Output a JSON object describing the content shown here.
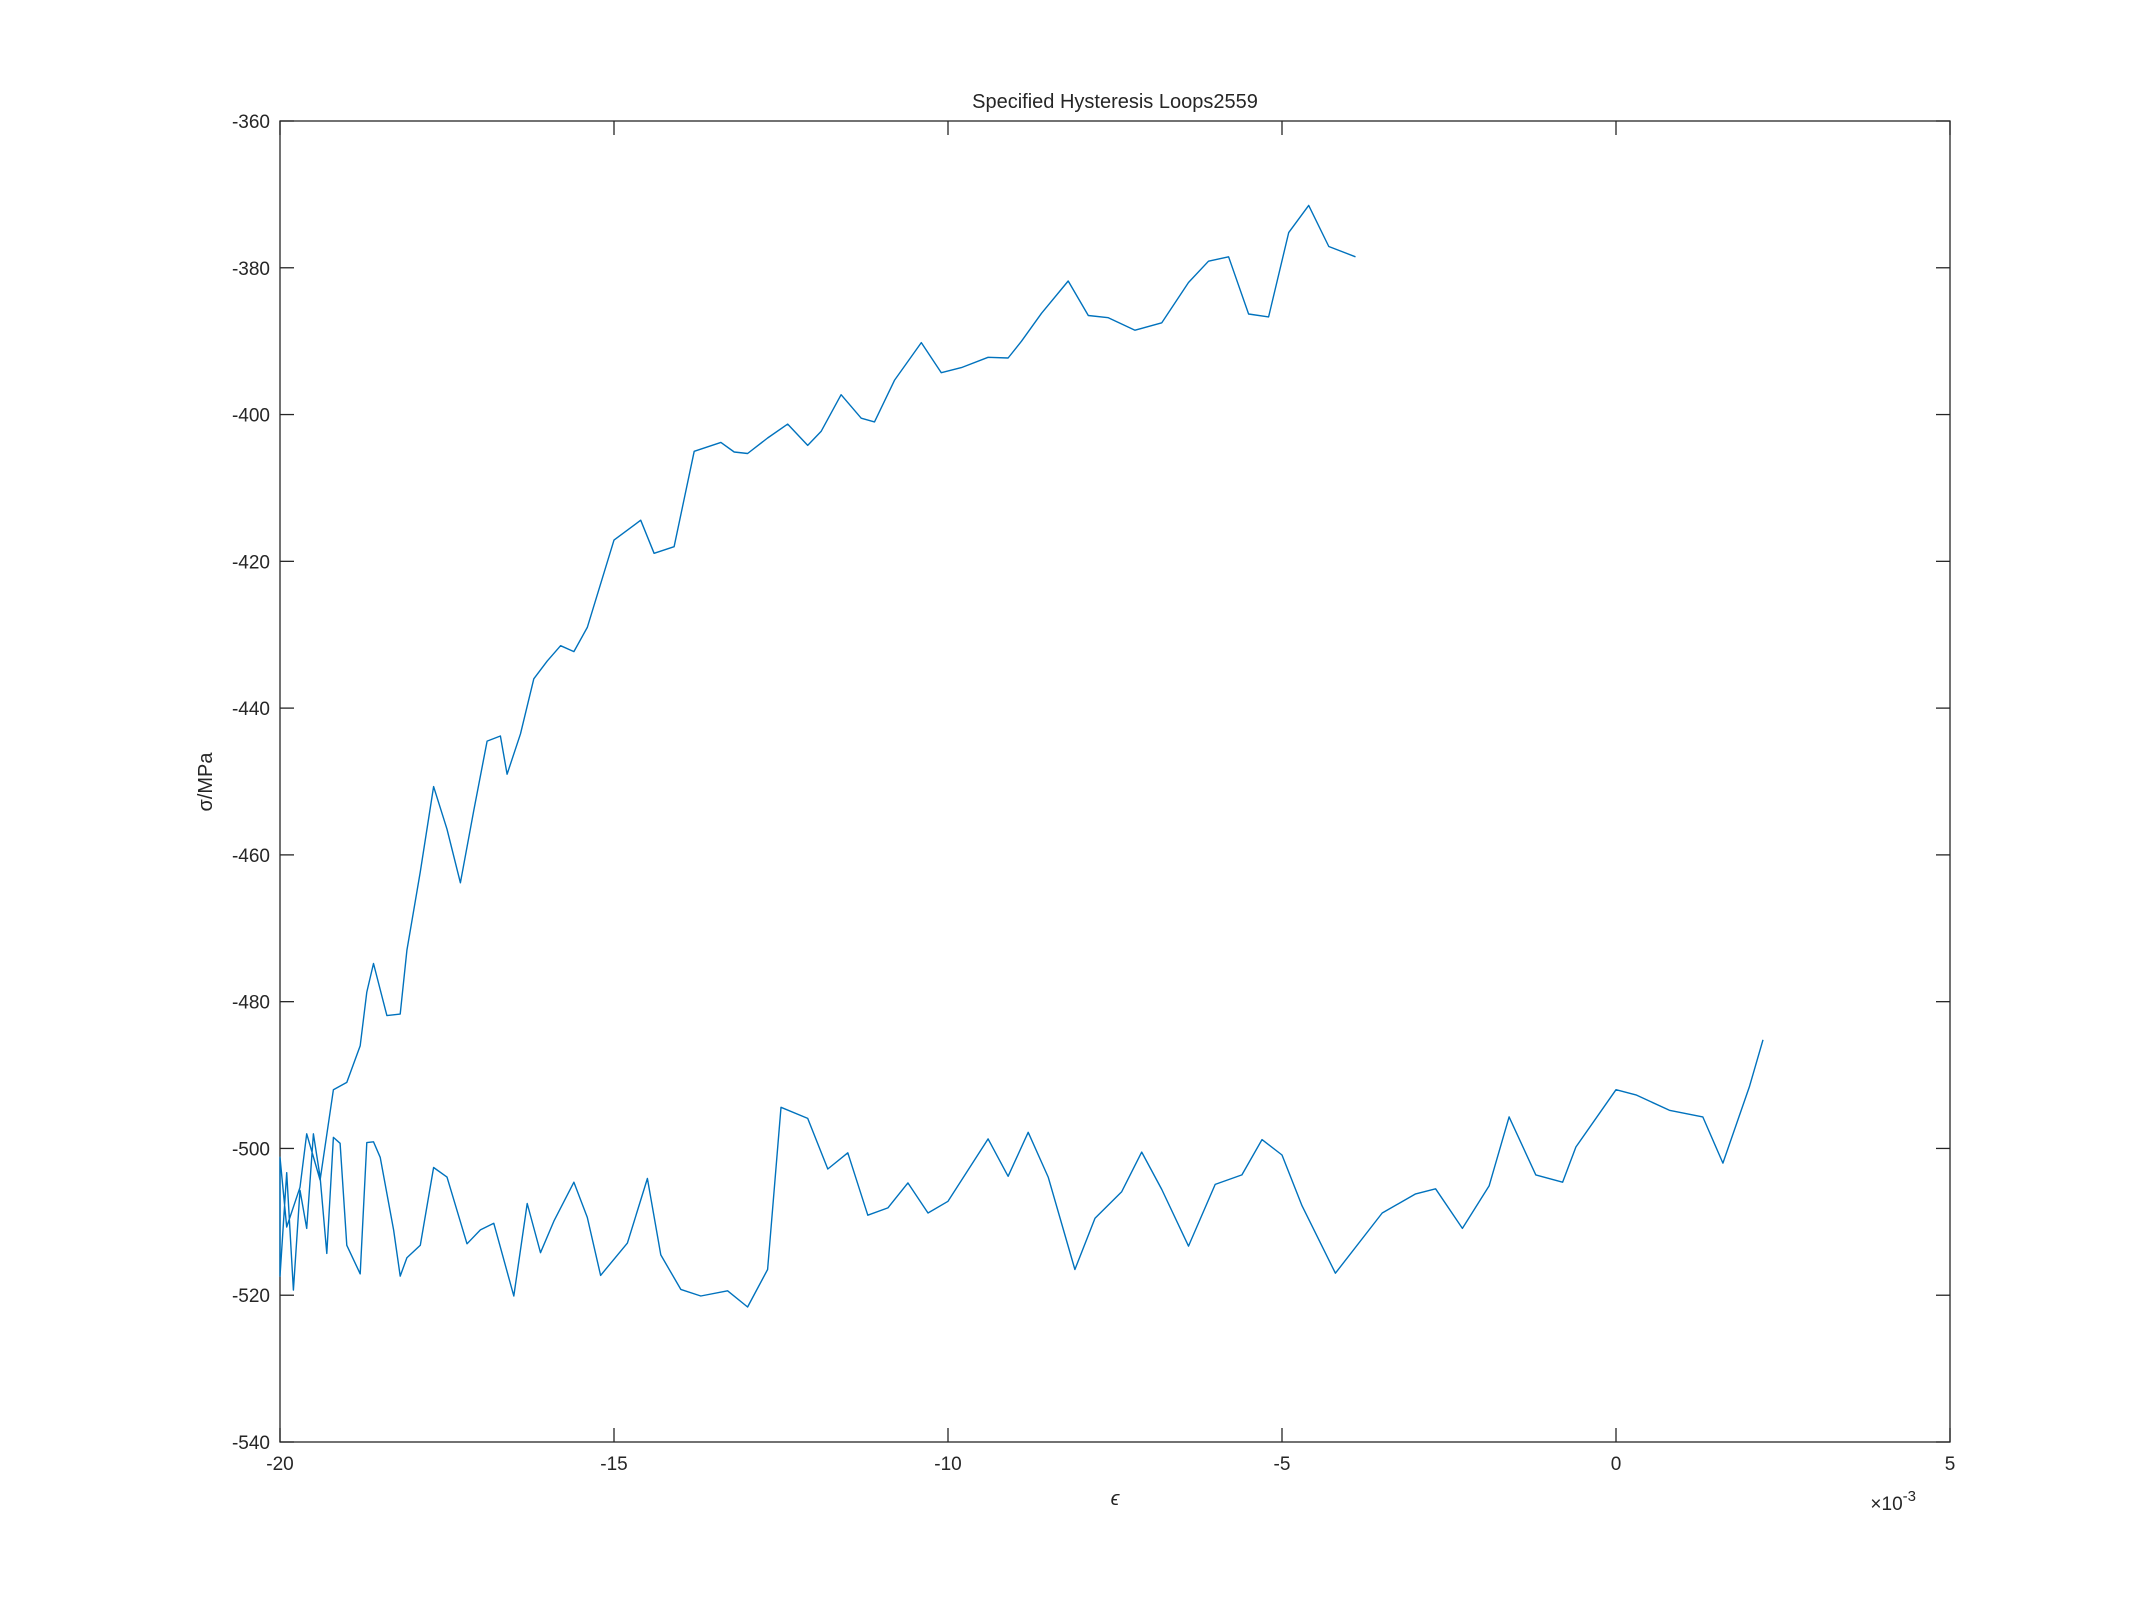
{
  "chart_data": {
    "type": "line",
    "title": "Specified Hysteresis Loops2559",
    "xlabel": "ϵ",
    "ylabel": "σ/MPa",
    "x_exponent_label": "×10",
    "x_exponent_power": "-3",
    "xlim": [
      -0.02,
      0.005
    ],
    "ylim": [
      -540,
      -360
    ],
    "grid": false,
    "legend": "none",
    "colors": {
      "series": "#0072BD",
      "axes": "#262626",
      "background": "#ffffff"
    },
    "x_ticks": [
      {
        "value": -0.02,
        "label": "-20"
      },
      {
        "value": -0.015,
        "label": "-15"
      },
      {
        "value": -0.01,
        "label": "-10"
      },
      {
        "value": -0.005,
        "label": "-5"
      },
      {
        "value": 0,
        "label": "0"
      },
      {
        "value": 0.005,
        "label": "5"
      }
    ],
    "y_ticks": [
      {
        "value": -360,
        "label": "-360"
      },
      {
        "value": -380,
        "label": "-380"
      },
      {
        "value": -400,
        "label": "-400"
      },
      {
        "value": -420,
        "label": "-420"
      },
      {
        "value": -440,
        "label": "-440"
      },
      {
        "value": -460,
        "label": "-460"
      },
      {
        "value": -480,
        "label": "-480"
      },
      {
        "value": -500,
        "label": "-500"
      },
      {
        "value": -520,
        "label": "-520"
      },
      {
        "value": -540,
        "label": "-540"
      }
    ],
    "series": [
      {
        "points": [
          [
            0.0022,
            -485.2
          ],
          [
            0.002,
            -491.5
          ],
          [
            0.0016,
            -502.0
          ],
          [
            0.0013,
            -495.7
          ],
          [
            0.0008,
            -494.8
          ],
          [
            0.0003,
            -492.7
          ],
          [
            0.0,
            -492.0
          ],
          [
            -0.0006,
            -499.8
          ],
          [
            -0.0008,
            -504.6
          ],
          [
            -0.0012,
            -503.6
          ],
          [
            -0.0016,
            -495.7
          ],
          [
            -0.0019,
            -505.1
          ],
          [
            -0.0023,
            -510.9
          ],
          [
            -0.0027,
            -505.5
          ],
          [
            -0.003,
            -506.2
          ],
          [
            -0.0035,
            -508.8
          ],
          [
            -0.0042,
            -517.0
          ],
          [
            -0.0047,
            -507.8
          ],
          [
            -0.005,
            -500.9
          ],
          [
            -0.0053,
            -498.8
          ],
          [
            -0.0056,
            -503.6
          ],
          [
            -0.006,
            -504.9
          ],
          [
            -0.0064,
            -513.3
          ],
          [
            -0.0068,
            -505.6
          ],
          [
            -0.0071,
            -500.5
          ],
          [
            -0.0074,
            -505.9
          ],
          [
            -0.0078,
            -509.5
          ],
          [
            -0.0081,
            -516.5
          ],
          [
            -0.0085,
            -503.9
          ],
          [
            -0.0088,
            -497.8
          ],
          [
            -0.0091,
            -503.8
          ],
          [
            -0.0094,
            -498.7
          ],
          [
            -0.01,
            -507.2
          ],
          [
            -0.0103,
            -508.8
          ],
          [
            -0.0106,
            -504.7
          ],
          [
            -0.0109,
            -508.1
          ],
          [
            -0.0112,
            -509.1
          ],
          [
            -0.0115,
            -500.6
          ],
          [
            -0.0118,
            -502.8
          ],
          [
            -0.0121,
            -495.9
          ],
          [
            -0.0125,
            -494.4
          ],
          [
            -0.0127,
            -516.5
          ],
          [
            -0.013,
            -521.6
          ],
          [
            -0.0133,
            -519.4
          ],
          [
            -0.0137,
            -520.1
          ],
          [
            -0.014,
            -519.2
          ],
          [
            -0.0143,
            -514.5
          ],
          [
            -0.0145,
            -504.1
          ],
          [
            -0.0148,
            -512.9
          ],
          [
            -0.0152,
            -517.3
          ],
          [
            -0.0154,
            -509.4
          ],
          [
            -0.0156,
            -504.6
          ],
          [
            -0.0159,
            -509.9
          ],
          [
            -0.0161,
            -514.2
          ],
          [
            -0.0163,
            -507.5
          ],
          [
            -0.0165,
            -520.1
          ],
          [
            -0.0168,
            -510.2
          ],
          [
            -0.017,
            -511.1
          ],
          [
            -0.0172,
            -513.0
          ],
          [
            -0.0175,
            -503.9
          ],
          [
            -0.0177,
            -502.6
          ],
          [
            -0.0179,
            -513.2
          ],
          [
            -0.0181,
            -514.9
          ],
          [
            -0.0182,
            -517.4
          ],
          [
            -0.0183,
            -511.1
          ],
          [
            -0.0185,
            -501.2
          ],
          [
            -0.0186,
            -499.1
          ],
          [
            -0.0187,
            -499.2
          ],
          [
            -0.0188,
            -517.1
          ],
          [
            -0.019,
            -513.2
          ],
          [
            -0.0191,
            -499.3
          ],
          [
            -0.0192,
            -498.5
          ],
          [
            -0.0193,
            -514.3
          ],
          [
            -0.0194,
            -503.9
          ],
          [
            -0.0195,
            -498.0
          ],
          [
            -0.0196,
            -510.9
          ],
          [
            -0.0197,
            -505.7
          ],
          [
            -0.0198,
            -519.3
          ],
          [
            -0.0199,
            -503.3
          ],
          [
            -0.02,
            -517.4
          ],
          [
            -0.02,
            -501.2
          ],
          [
            -0.0199,
            -510.7
          ],
          [
            -0.0197,
            -505.3
          ],
          [
            -0.0196,
            -498.0
          ],
          [
            -0.0194,
            -504.3
          ],
          [
            -0.0192,
            -492.0
          ],
          [
            -0.019,
            -491.0
          ],
          [
            -0.0188,
            -486.0
          ],
          [
            -0.0187,
            -478.7
          ],
          [
            -0.0186,
            -474.8
          ],
          [
            -0.0184,
            -481.9
          ],
          [
            -0.0182,
            -481.7
          ],
          [
            -0.0181,
            -473.0
          ],
          [
            -0.0179,
            -462.3
          ],
          [
            -0.0177,
            -450.7
          ],
          [
            -0.0175,
            -456.5
          ],
          [
            -0.0173,
            -463.8
          ],
          [
            -0.0171,
            -454.0
          ],
          [
            -0.0169,
            -444.5
          ],
          [
            -0.0167,
            -443.8
          ],
          [
            -0.0166,
            -449.0
          ],
          [
            -0.0164,
            -443.5
          ],
          [
            -0.0162,
            -436.0
          ],
          [
            -0.016,
            -433.6
          ],
          [
            -0.0158,
            -431.5
          ],
          [
            -0.0156,
            -432.3
          ],
          [
            -0.0154,
            -429.0
          ],
          [
            -0.015,
            -417.1
          ],
          [
            -0.0146,
            -414.4
          ],
          [
            -0.0144,
            -418.9
          ],
          [
            -0.0141,
            -418.0
          ],
          [
            -0.0138,
            -405.0
          ],
          [
            -0.0134,
            -403.8
          ],
          [
            -0.0132,
            -405.1
          ],
          [
            -0.013,
            -405.3
          ],
          [
            -0.0127,
            -403.2
          ],
          [
            -0.0124,
            -401.3
          ],
          [
            -0.0121,
            -404.2
          ],
          [
            -0.0119,
            -402.3
          ],
          [
            -0.0116,
            -397.3
          ],
          [
            -0.0113,
            -400.5
          ],
          [
            -0.0111,
            -401.0
          ],
          [
            -0.0108,
            -395.3
          ],
          [
            -0.0104,
            -390.2
          ],
          [
            -0.0101,
            -394.3
          ],
          [
            -0.0098,
            -393.6
          ],
          [
            -0.0094,
            -392.2
          ],
          [
            -0.0091,
            -392.3
          ],
          [
            -0.0089,
            -390.0
          ],
          [
            -0.0086,
            -386.2
          ],
          [
            -0.0082,
            -381.8
          ],
          [
            -0.0079,
            -386.5
          ],
          [
            -0.0076,
            -386.8
          ],
          [
            -0.0072,
            -388.5
          ],
          [
            -0.0068,
            -387.5
          ],
          [
            -0.0064,
            -382.0
          ],
          [
            -0.0061,
            -379.1
          ],
          [
            -0.0058,
            -378.5
          ],
          [
            -0.0055,
            -386.3
          ],
          [
            -0.0052,
            -386.7
          ],
          [
            -0.0049,
            -375.2
          ],
          [
            -0.0046,
            -371.5
          ],
          [
            -0.0043,
            -377.1
          ],
          [
            -0.0039,
            -378.5
          ]
        ]
      }
    ]
  }
}
